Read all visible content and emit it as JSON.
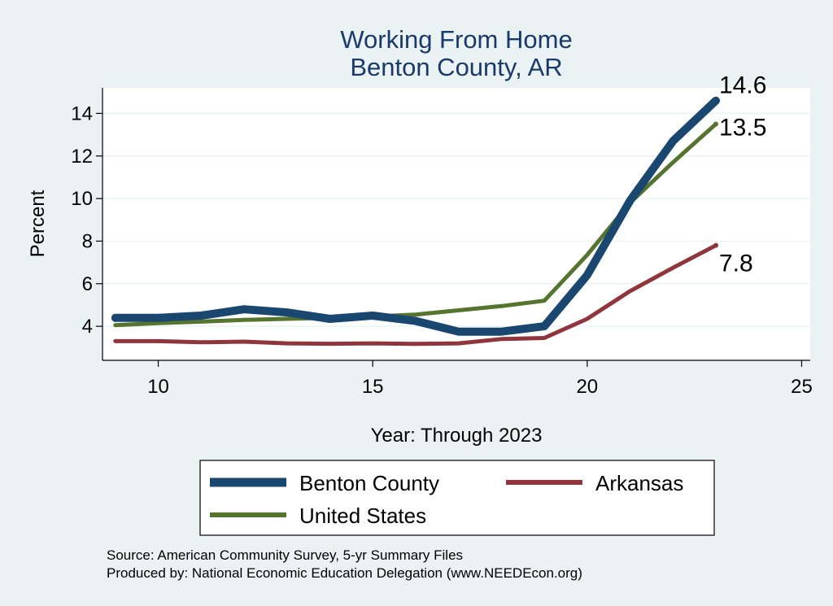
{
  "chart_data": {
    "type": "line",
    "title": [
      "Working From Home",
      "Benton County, AR"
    ],
    "xlabel": "Year: Through 2023",
    "ylabel": "Percent",
    "xlim": [
      8.7,
      25.2
    ],
    "ylim": [
      2.4,
      15.2
    ],
    "xticks": [
      10,
      15,
      20,
      25
    ],
    "yticks": [
      4,
      6,
      8,
      10,
      12,
      14
    ],
    "grid": "horizontal",
    "legend_position": "bottom",
    "series": [
      {
        "name": "Benton County",
        "color": "#1A476F",
        "x": [
          9,
          10,
          11,
          12,
          13,
          14,
          15,
          16,
          17,
          18,
          19,
          20,
          21,
          22,
          23
        ],
        "values": [
          4.4,
          4.4,
          4.5,
          4.8,
          4.65,
          4.35,
          4.5,
          4.25,
          3.75,
          3.75,
          4.0,
          6.4,
          9.9,
          12.7,
          14.6
        ],
        "end_label": "14.6"
      },
      {
        "name": "Arkansas",
        "color": "#90353B",
        "x": [
          9,
          10,
          11,
          12,
          13,
          14,
          15,
          16,
          17,
          18,
          19,
          20,
          21,
          22,
          23
        ],
        "values": [
          3.3,
          3.3,
          3.25,
          3.28,
          3.2,
          3.18,
          3.2,
          3.17,
          3.2,
          3.4,
          3.45,
          4.35,
          5.65,
          6.75,
          7.8
        ],
        "end_label": "7.8"
      },
      {
        "name": "United States",
        "color": "#55752F",
        "x": [
          9,
          10,
          11,
          12,
          13,
          14,
          15,
          16,
          17,
          18,
          19,
          20,
          21,
          22,
          23
        ],
        "values": [
          4.05,
          4.15,
          4.22,
          4.3,
          4.35,
          4.4,
          4.45,
          4.55,
          4.75,
          4.95,
          5.2,
          7.35,
          9.8,
          11.7,
          13.5
        ],
        "end_label": "13.5"
      }
    ]
  },
  "notes": {
    "source": "Source: American Community Survey, 5-yr Summary Files",
    "produced_by": "Produced by: National Economic Education Delegation (www.NEEDEcon.org)"
  }
}
